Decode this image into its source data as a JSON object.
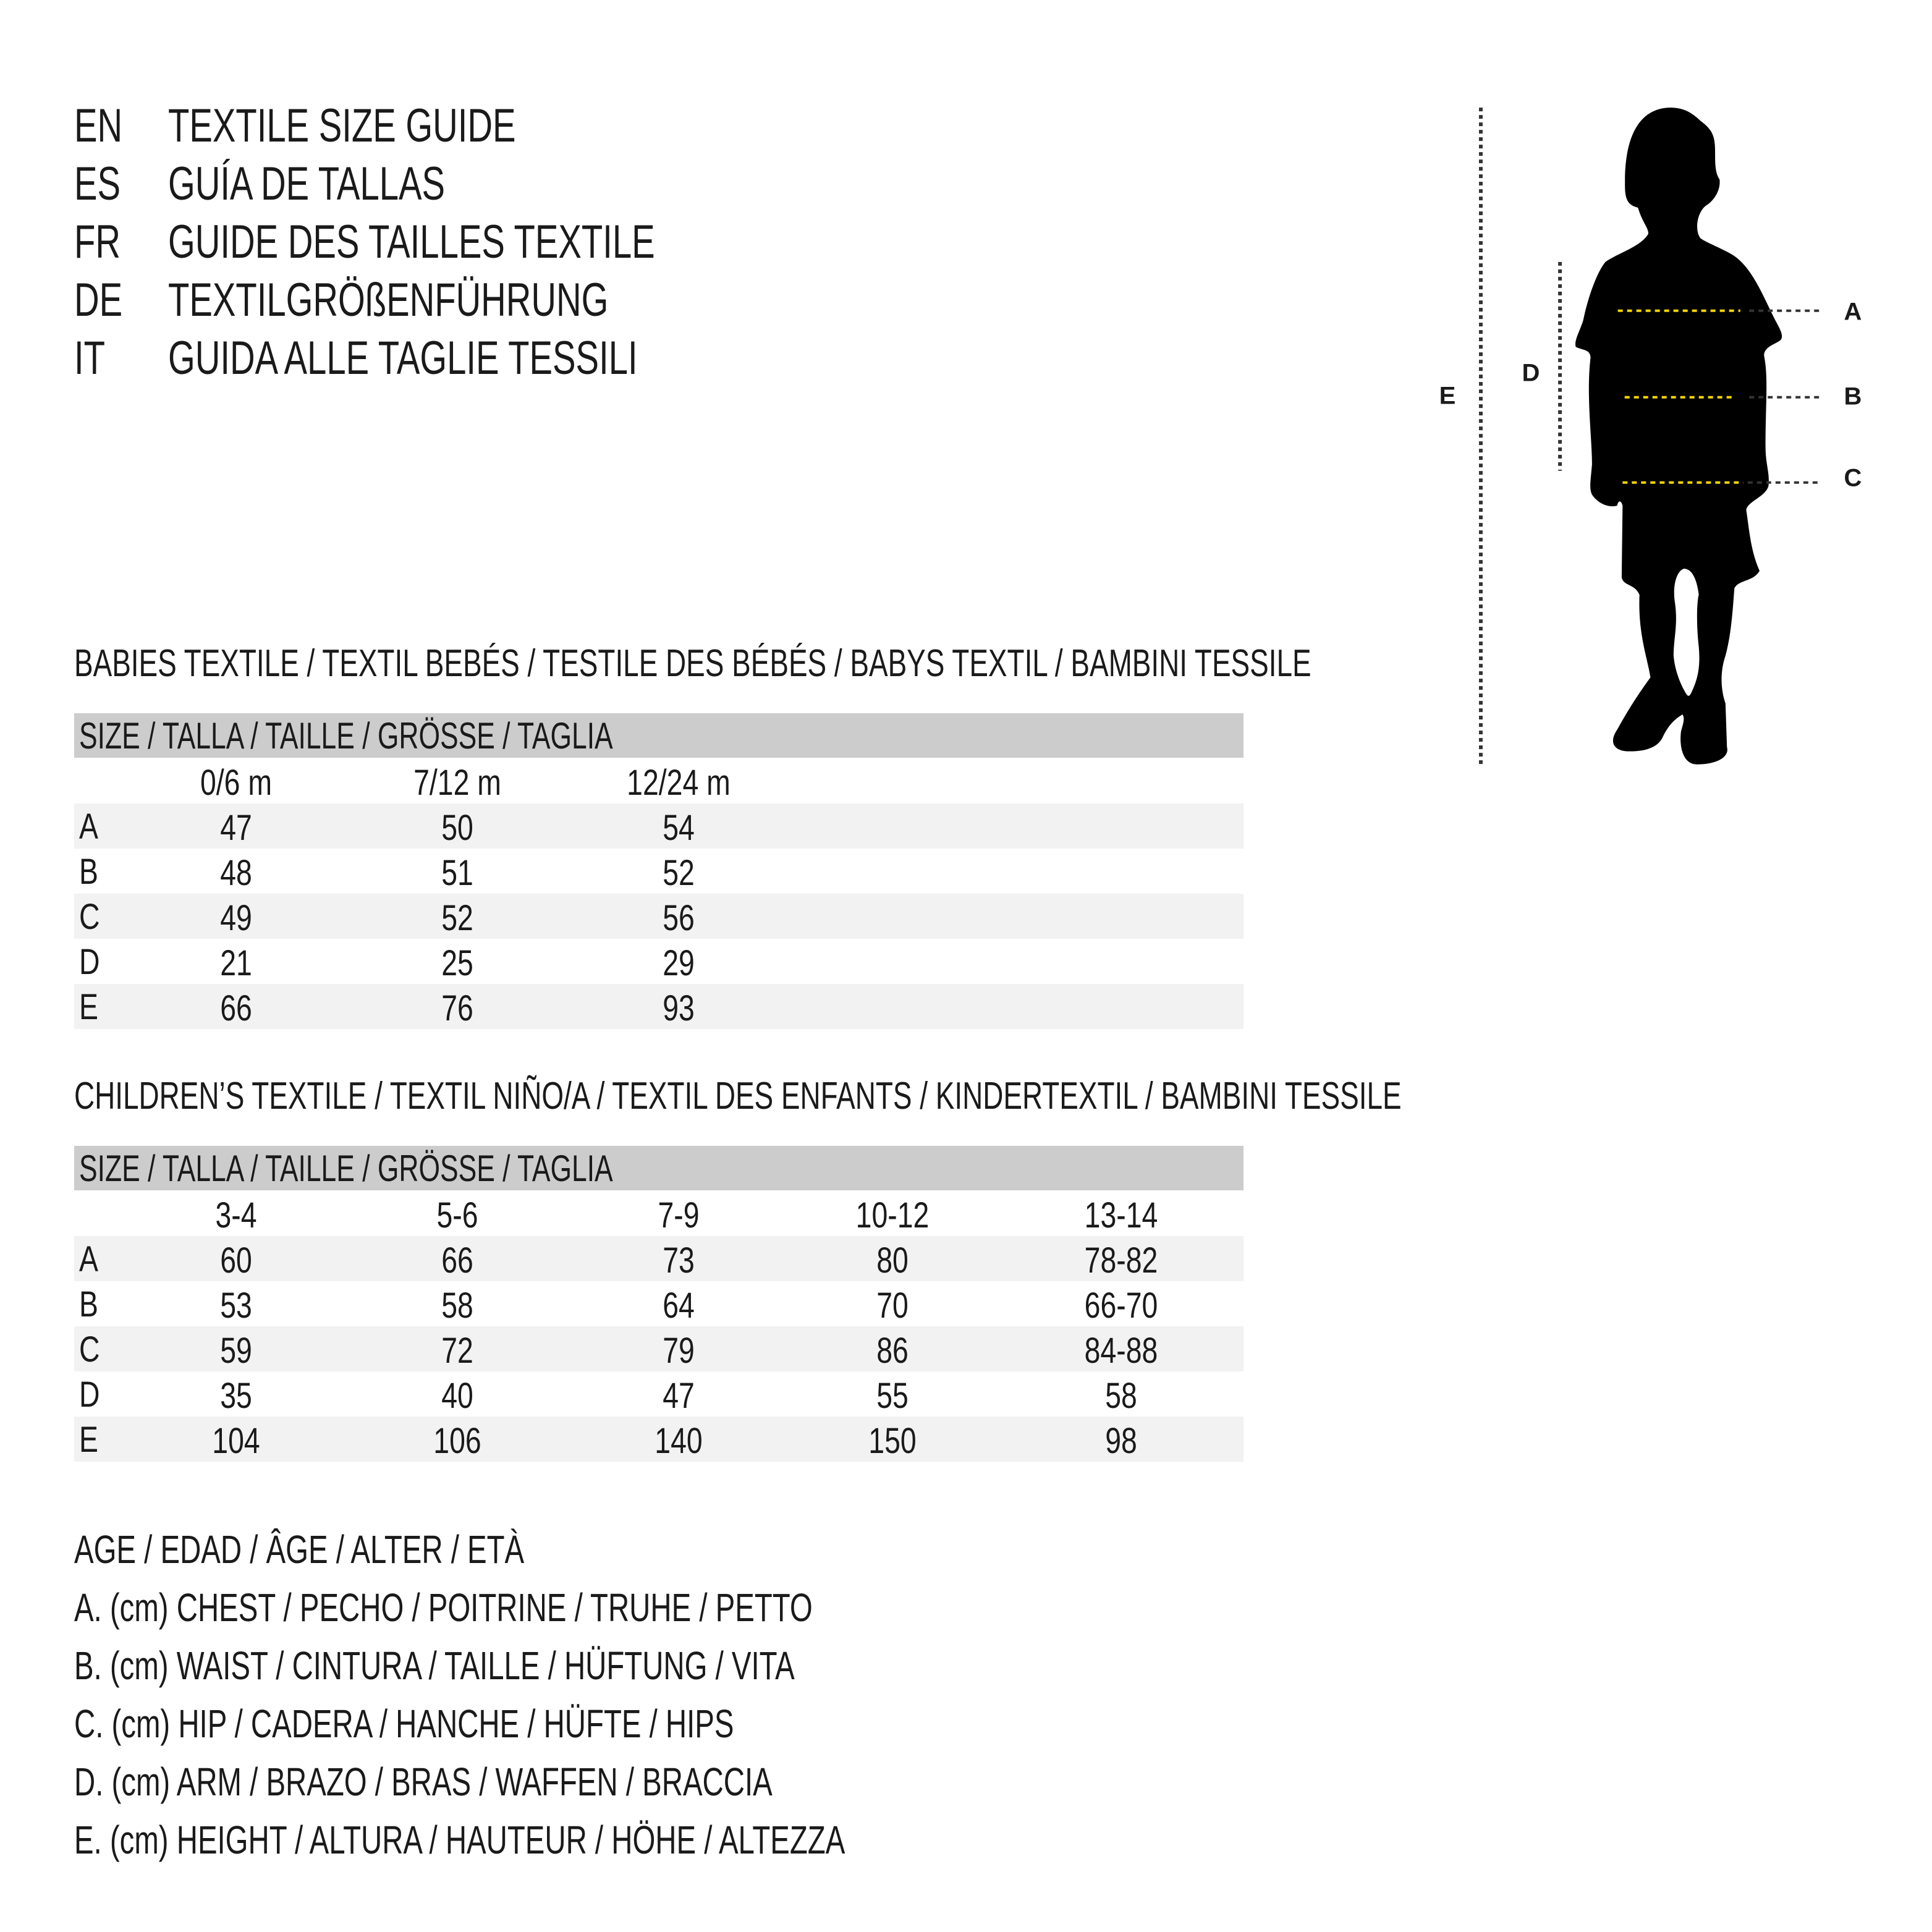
{
  "header": [
    {
      "code": "EN",
      "title": "TEXTILE SIZE GUIDE"
    },
    {
      "code": "ES",
      "title": "GUÍA DE TALLAS"
    },
    {
      "code": "FR",
      "title": "GUIDE DES TAILLES TEXTILE"
    },
    {
      "code": "DE",
      "title": "TEXTILGRÖßENFÜHRUNG"
    },
    {
      "code": "IT",
      "title": "GUIDA ALLE TAGLIE TESSILI"
    }
  ],
  "diagram": {
    "labels": {
      "A": "A",
      "B": "B",
      "C": "C",
      "D": "D",
      "E": "E"
    },
    "colors": {
      "silhouette": "#000000",
      "measure_line": "#f2d600",
      "guide_line": "#333333"
    }
  },
  "babies": {
    "title": "BABIES TEXTILE / TEXTIL BEBÉS / TESTILE DES BÉBÉS / BABYS TEXTIL / BAMBINI TESSILE",
    "size_header": "SIZE / TALLA / TAILLE / GRÖSSE / TAGLIA",
    "columns": [
      "0/6 m",
      "7/12 m",
      "12/24 m"
    ],
    "rows": [
      {
        "label": "A",
        "values": [
          "47",
          "50",
          "54"
        ]
      },
      {
        "label": "B",
        "values": [
          "48",
          "51",
          "52"
        ]
      },
      {
        "label": "C",
        "values": [
          "49",
          "52",
          "56"
        ]
      },
      {
        "label": "D",
        "values": [
          "21",
          "25",
          "29"
        ]
      },
      {
        "label": "E",
        "values": [
          "66",
          "76",
          "93"
        ]
      }
    ]
  },
  "children": {
    "title": "CHILDREN’S TEXTILE / TEXTIL NIÑO/A / TEXTIL DES ENFANTS / KINDERTEXTIL / BAMBINI TESSILE",
    "size_header": "SIZE / TALLA / TAILLE / GRÖSSE / TAGLIA",
    "columns": [
      "3-4",
      "5-6",
      "7-9",
      "10-12",
      "13-14"
    ],
    "rows": [
      {
        "label": "A",
        "values": [
          "60",
          "66",
          "73",
          "80",
          "78-82"
        ]
      },
      {
        "label": "B",
        "values": [
          "53",
          "58",
          "64",
          "70",
          "66-70"
        ]
      },
      {
        "label": "C",
        "values": [
          "59",
          "72",
          "79",
          "86",
          "84-88"
        ]
      },
      {
        "label": "D",
        "values": [
          "35",
          "40",
          "47",
          "55",
          "58"
        ]
      },
      {
        "label": "E",
        "values": [
          "104",
          "106",
          "140",
          "150",
          "98"
        ]
      }
    ]
  },
  "legend": [
    "AGE / EDAD / ÂGE / ALTER / ETÀ",
    "A. (cm) CHEST / PECHO / POITRINE / TRUHE / PETTO",
    "B. (cm) WAIST / CINTURA / TAILLE / HÜFTUNG / VITA",
    "C. (cm) HIP / CADERA / HANCHE / HÜFTE / HIPS",
    "D. (cm) ARM / BRAZO / BRAS / WAFFEN / BRACCIA",
    "E. (cm) HEIGHT / ALTURA / HAUTEUR / HÖHE / ALTEZZA"
  ]
}
